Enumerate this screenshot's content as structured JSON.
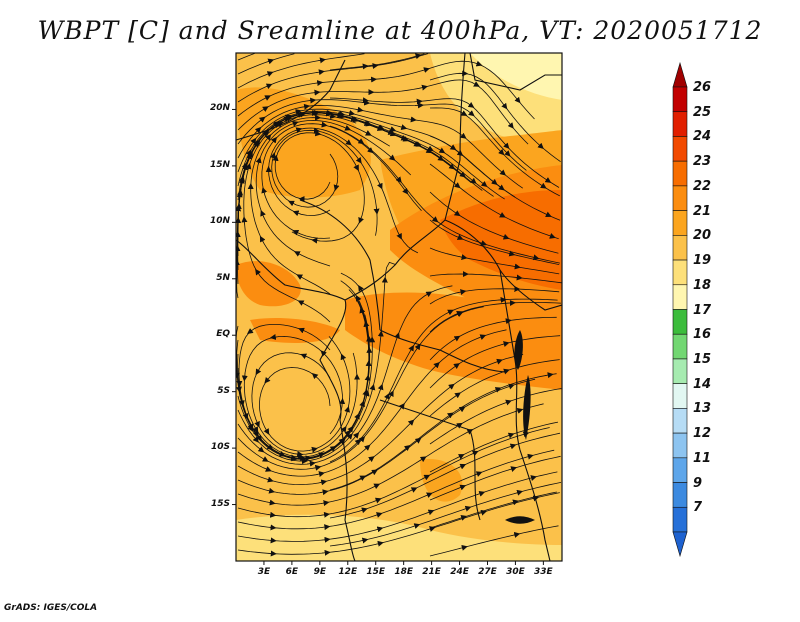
{
  "title": "WBPT [C] and Sreamline at 400hPa, VT: 2020051712",
  "credit": "GrADS: IGES/COLA",
  "map": {
    "lat_labels": [
      "20N",
      "15N",
      "10N",
      "5N",
      "EQ",
      "5S",
      "10S",
      "15S"
    ],
    "lat_values": [
      20,
      15,
      10,
      5,
      0,
      -5,
      -10,
      -15
    ],
    "lon_labels": [
      "3E",
      "6E",
      "9E",
      "12E",
      "15E",
      "18E",
      "21E",
      "24E",
      "27E",
      "30E",
      "33E"
    ],
    "lon_values": [
      3,
      6,
      9,
      12,
      15,
      18,
      21,
      24,
      27,
      30,
      33
    ],
    "lon_range": [
      0,
      35
    ],
    "lat_range": [
      -20,
      25
    ]
  },
  "colorbar": {
    "labels": [
      "26",
      "25",
      "24",
      "23",
      "22",
      "21",
      "20",
      "19",
      "18",
      "17",
      "16",
      "15",
      "14",
      "13",
      "12",
      "11",
      "9",
      "7"
    ],
    "colors": [
      "#c20000",
      "#e11f00",
      "#f24a00",
      "#f76d00",
      "#fb8d10",
      "#fba51f",
      "#fbc14a",
      "#fde07a",
      "#fff6b0",
      "#3cbc3c",
      "#72d772",
      "#a6ebb0",
      "#e2f7f2",
      "#b6dcf5",
      "#8dc4f0",
      "#5ea6ea",
      "#3c8ae0",
      "#2670d8"
    ],
    "top_arrow_color": "#a00000",
    "bottom_arrow_color": "#1e62d0"
  }
}
